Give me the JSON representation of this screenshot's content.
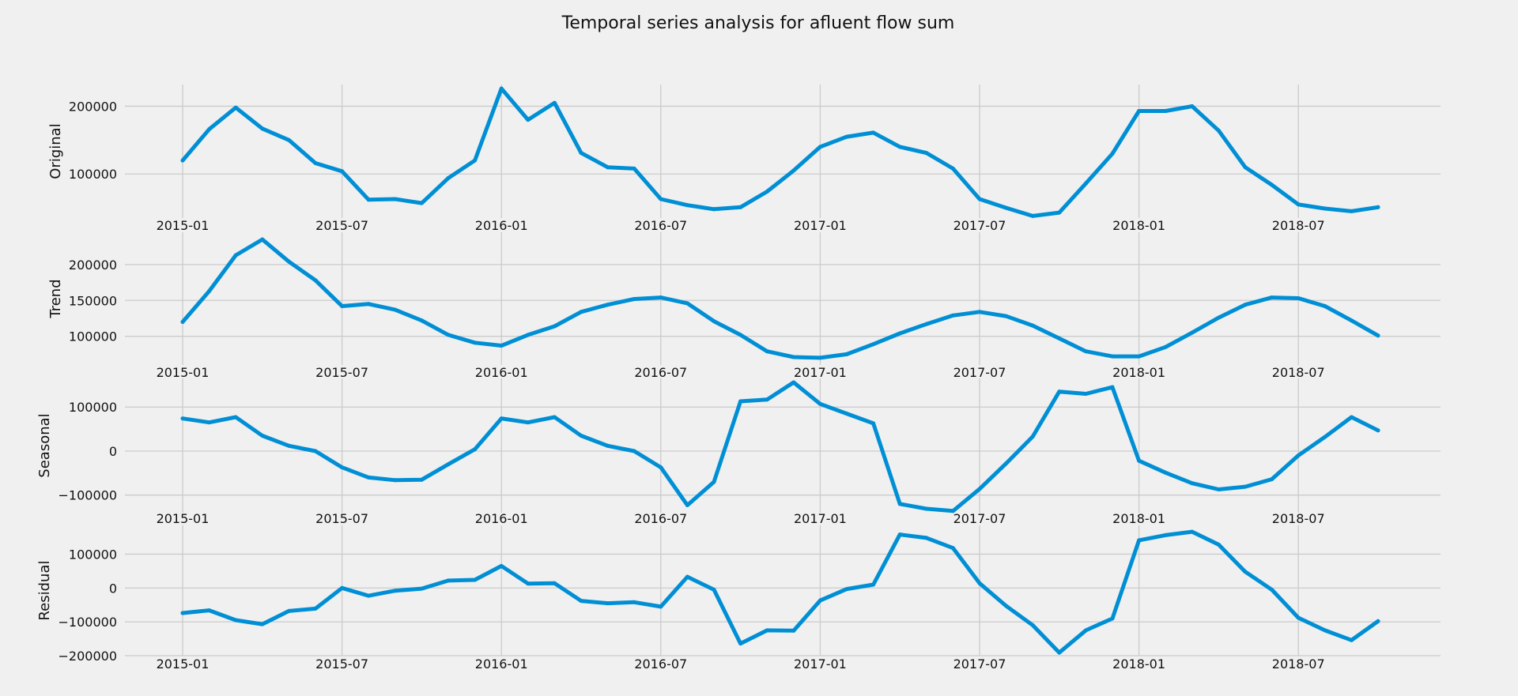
{
  "chart_data": {
    "type": "line",
    "title": "Temporal series analysis for afluent flow sum",
    "colors": {
      "line": "#008fd5",
      "grid": "#cbcbcb",
      "background": "#f0f0f0"
    },
    "grid": true,
    "x": [
      "2015-01",
      "2015-02",
      "2015-03",
      "2015-04",
      "2015-05",
      "2015-06",
      "2015-07",
      "2015-08",
      "2015-09",
      "2015-10",
      "2015-11",
      "2015-12",
      "2016-01",
      "2016-02",
      "2016-03",
      "2016-04",
      "2016-05",
      "2016-06",
      "2016-07",
      "2016-08",
      "2016-09",
      "2016-10",
      "2016-11",
      "2016-12",
      "2017-01",
      "2017-02",
      "2017-03",
      "2017-04",
      "2017-05",
      "2017-06",
      "2017-07",
      "2017-08",
      "2017-09",
      "2017-10",
      "2017-11",
      "2017-12",
      "2018-01",
      "2018-02",
      "2018-03",
      "2018-04",
      "2018-05",
      "2018-06",
      "2018-07",
      "2018-08",
      "2018-09",
      "2018-10"
    ],
    "x_ticks": [
      "2015-01",
      "2015-07",
      "2016-01",
      "2016-07",
      "2017-01",
      "2017-07",
      "2018-01",
      "2018-07"
    ],
    "subplots": [
      {
        "ylabel": "Original",
        "ylim": [
          35000,
          232000
        ],
        "yticks": [
          100000,
          200000
        ],
        "values": [
          120000,
          166000,
          198000,
          167000,
          150000,
          116000,
          104000,
          62000,
          63000,
          57000,
          94000,
          120000,
          226000,
          180000,
          205000,
          131000,
          110000,
          108000,
          63000,
          54000,
          48000,
          51000,
          74000,
          105000,
          140000,
          155000,
          161000,
          140000,
          131000,
          108000,
          63000,
          50000,
          38000,
          43000,
          86000,
          130000,
          193000,
          193000,
          200000,
          164000,
          110000,
          84000,
          55000,
          49000,
          45000,
          51000
        ]
      },
      {
        "ylabel": "Trend",
        "ylim": [
          60000,
          245000
        ],
        "yticks": [
          100000,
          150000,
          200000
        ],
        "values": [
          120000,
          163000,
          213000,
          235000,
          204000,
          178000,
          142000,
          145000,
          137000,
          122000,
          102000,
          91000,
          87000,
          102000,
          114000,
          134000,
          144000,
          152000,
          154000,
          146000,
          121000,
          102000,
          79000,
          71000,
          70000,
          75000,
          89000,
          104000,
          117000,
          129000,
          134000,
          128000,
          115000,
          97000,
          79000,
          72000,
          72000,
          85000,
          105000,
          126000,
          144000,
          154000,
          153000,
          142000,
          122000,
          101000
        ]
      },
      {
        "ylabel": "Seasonal",
        "ylim": [
          -140000,
          165000
        ],
        "yticks": [
          -100000,
          0,
          100000
        ],
        "values": [
          74000,
          65000,
          77000,
          35000,
          12000,
          0,
          -37000,
          -60000,
          -66000,
          -65000,
          -30000,
          4000,
          74000,
          65000,
          77000,
          35000,
          12000,
          0,
          -37000,
          -123000,
          -70000,
          113000,
          117000,
          156000,
          107000,
          85000,
          63000,
          -120000,
          -131000,
          -136000,
          -86000,
          -28000,
          33000,
          135000,
          130000,
          145000,
          -22000,
          -49000,
          -73000,
          -87000,
          -81000,
          -64000,
          -10000,
          32000,
          77000,
          47000
        ]
      },
      {
        "ylabel": "Residual",
        "ylim": [
          -200000,
          185000
        ],
        "yticks": [
          -200000,
          -100000,
          0,
          100000
        ],
        "values": [
          -74000,
          -66000,
          -95000,
          -107000,
          -68000,
          -61000,
          0,
          -23000,
          -8000,
          -2000,
          22000,
          24000,
          65000,
          13000,
          14000,
          -38000,
          -45000,
          -42000,
          -55000,
          33000,
          -5000,
          -164000,
          -125000,
          -126000,
          -37000,
          -3000,
          10000,
          158000,
          148000,
          118000,
          14000,
          -53000,
          -110000,
          -191000,
          -125000,
          -90000,
          141000,
          156000,
          166000,
          128000,
          48000,
          -5000,
          -88000,
          -125000,
          -154000,
          -98000
        ]
      }
    ]
  }
}
